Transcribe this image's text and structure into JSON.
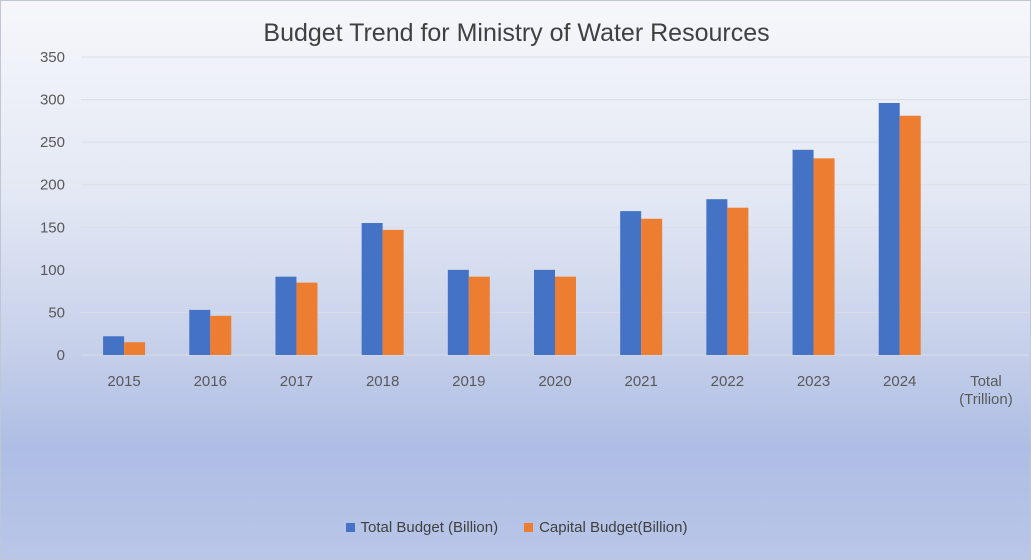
{
  "chart_data": {
    "type": "bar",
    "title": "Budget Trend for Ministry of Water Resources",
    "categories": [
      "2015",
      "2016",
      "2017",
      "2018",
      "2019",
      "2020",
      "2021",
      "2022",
      "2023",
      "2024",
      "Total (Trillion)"
    ],
    "series": [
      {
        "name": "Total Budget (Billion)",
        "color": "#4472C4",
        "values": [
          22,
          53,
          92,
          155,
          100,
          100,
          169,
          183,
          241,
          296,
          null
        ]
      },
      {
        "name": "Capital Budget(Billion)",
        "color": "#ED7D31",
        "values": [
          15,
          46,
          85,
          147,
          92,
          92,
          160,
          173,
          231,
          281,
          null
        ]
      }
    ],
    "ylim": [
      0,
      350
    ],
    "yticks": [
      0,
      50,
      100,
      150,
      200,
      250,
      300,
      350
    ],
    "grid": true,
    "legend_position": "bottom",
    "xlabel": "",
    "ylabel": ""
  }
}
